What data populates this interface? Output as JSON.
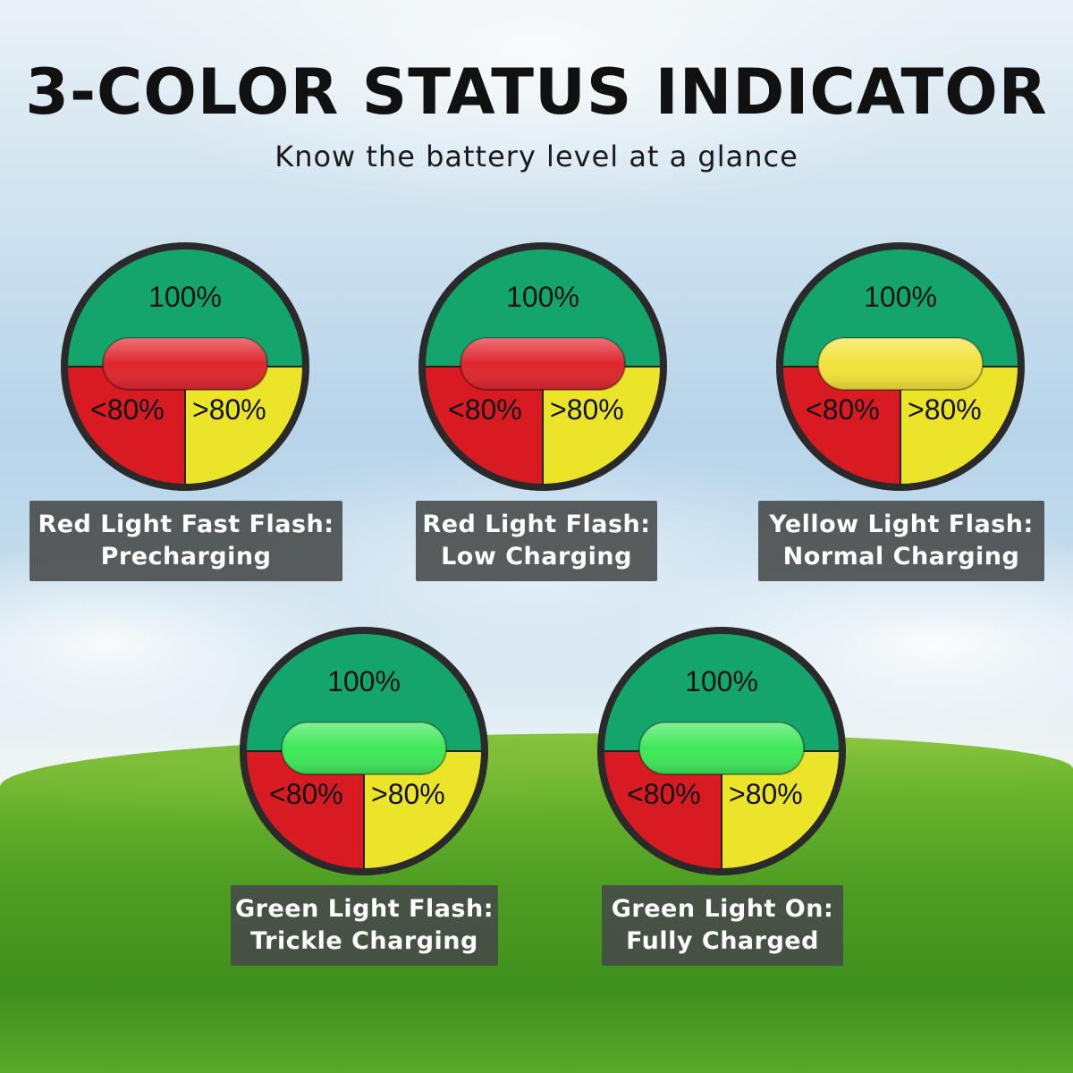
{
  "title": "3-COLOR STATUS INDICATOR",
  "subtitle": "Know the battery level at a glance",
  "zone_labels": {
    "full": "100%",
    "low": "<80%",
    "high": ">80%"
  },
  "colors": {
    "green_zone": "#14a56c",
    "red_zone": "#d81b22",
    "yellow_zone": "#ece429",
    "border": "#2a2a2a"
  },
  "indicators": [
    {
      "light_color": "red",
      "light_hex": "#e0262e",
      "line1": "Red Light Fast Flash:",
      "line2": "Precharging"
    },
    {
      "light_color": "red",
      "light_hex": "#e0262e",
      "line1": "Red Light Flash:",
      "line2": "Low Charging"
    },
    {
      "light_color": "yellow",
      "light_hex": "#f3e23a",
      "line1": "Yellow Light Flash:",
      "line2": "Normal Charging"
    },
    {
      "light_color": "green",
      "light_hex": "#3ee85a",
      "line1": "Green Light Flash:",
      "line2": "Trickle Charging"
    },
    {
      "light_color": "green",
      "light_hex": "#3ee85a",
      "line1": "Green Light On:",
      "line2": "Fully Charged"
    }
  ]
}
